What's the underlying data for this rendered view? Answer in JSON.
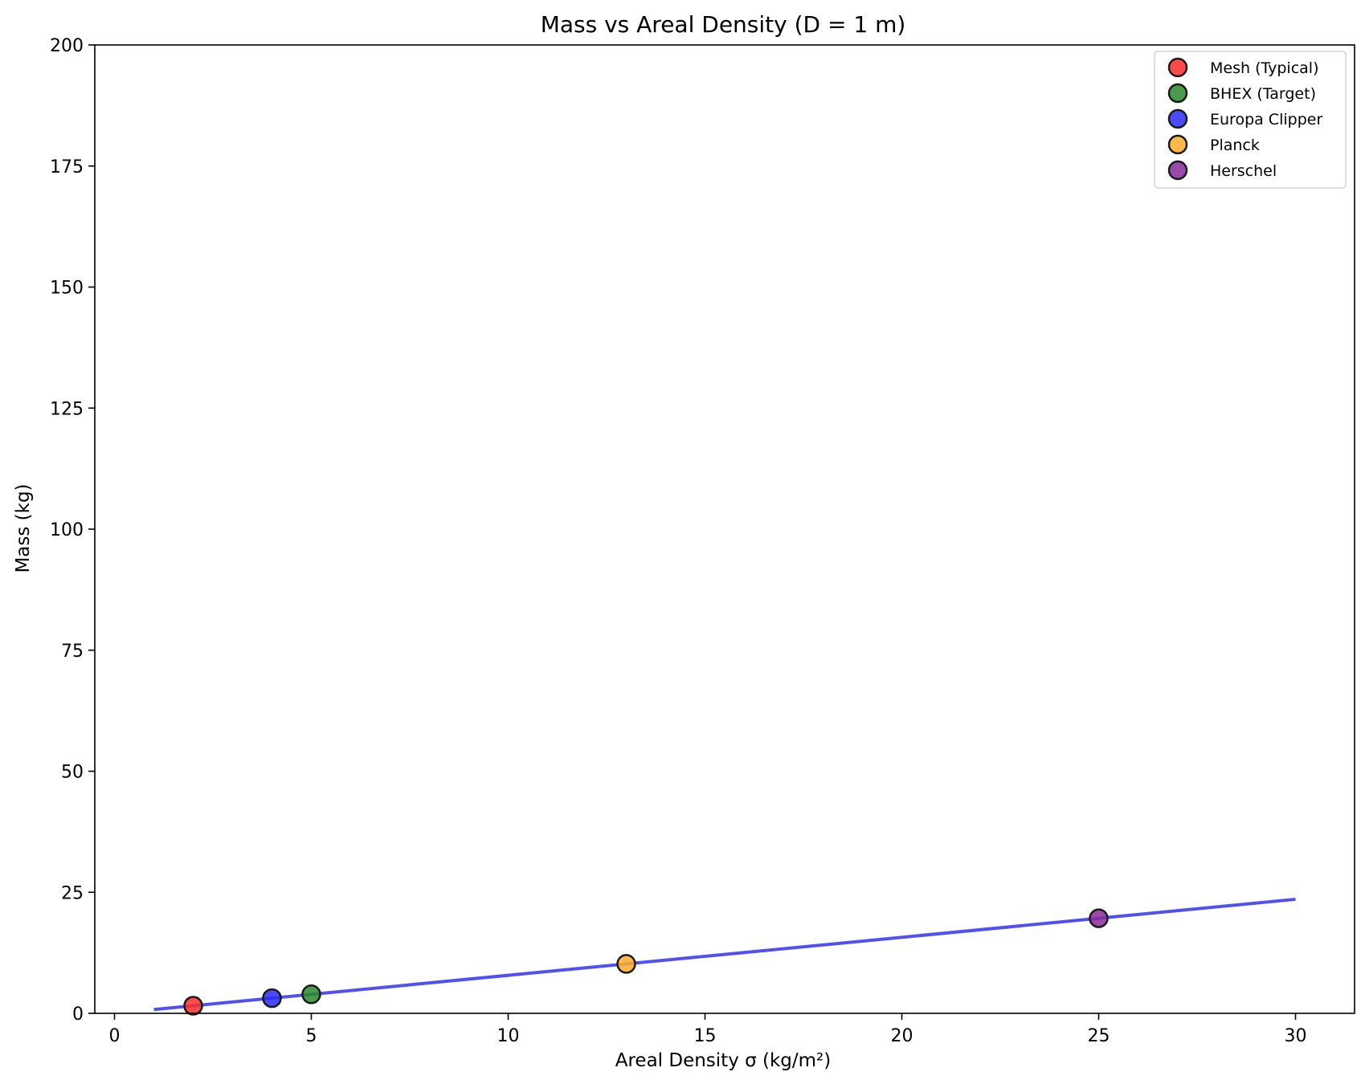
{
  "chart_data": {
    "type": "scatter",
    "title": "Mass vs Areal Density (D = 1 m)",
    "xlabel": "Areal Density σ (kg/m²)",
    "ylabel": "Mass (kg)",
    "xlim": [
      -0.5,
      31.5
    ],
    "ylim": [
      0,
      200
    ],
    "xticks": [
      "0",
      "5",
      "10",
      "15",
      "20",
      "25",
      "30"
    ],
    "yticks": [
      "0",
      "25",
      "50",
      "75",
      "100",
      "125",
      "150",
      "175",
      "200"
    ],
    "grid": false,
    "legend_position": "top-right",
    "line": {
      "color": "#3333ee",
      "x": [
        1,
        30
      ],
      "y": [
        0.785,
        23.56
      ]
    },
    "series": [
      {
        "name": "Mesh (Typical)",
        "x": 2,
        "y": 1.57,
        "color": "#ff2a2a"
      },
      {
        "name": "BHEX (Target)",
        "x": 5,
        "y": 3.93,
        "color": "#2a892a"
      },
      {
        "name": "Europa Clipper",
        "x": 4,
        "y": 3.14,
        "color": "#2a2aff"
      },
      {
        "name": "Planck",
        "x": 13,
        "y": 10.21,
        "color": "#ffab2a"
      },
      {
        "name": "Herschel",
        "x": 25,
        "y": 19.63,
        "color": "#8a2a9a"
      }
    ]
  }
}
